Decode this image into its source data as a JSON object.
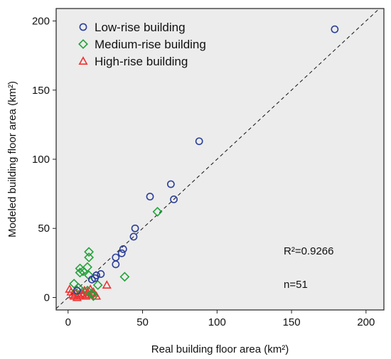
{
  "chart_data": {
    "type": "scatter",
    "xlabel": "Real building floor area (km²)",
    "ylabel": "Modeled building floor area (km²)",
    "xlim": [
      -8,
      212
    ],
    "ylim": [
      -9,
      209
    ],
    "xticks": [
      0,
      50,
      100,
      150,
      200
    ],
    "yticks": [
      0,
      50,
      100,
      150,
      200
    ],
    "grid": false,
    "legend_position": "top-left",
    "background": "#ececec",
    "reference_line": {
      "type": "identity",
      "style": "dashed"
    },
    "annotations": [
      "R²=0.9266",
      "n=51"
    ],
    "series": [
      {
        "name": "Low-rise building",
        "marker": "circle",
        "color": "#2b3f99",
        "points": [
          {
            "x": 179,
            "y": 194
          },
          {
            "x": 88,
            "y": 113
          },
          {
            "x": 69,
            "y": 82
          },
          {
            "x": 71,
            "y": 71
          },
          {
            "x": 55,
            "y": 73
          },
          {
            "x": 45,
            "y": 50
          },
          {
            "x": 44,
            "y": 44
          },
          {
            "x": 37,
            "y": 35
          },
          {
            "x": 36,
            "y": 32
          },
          {
            "x": 32,
            "y": 29
          },
          {
            "x": 32,
            "y": 24
          },
          {
            "x": 22,
            "y": 17
          },
          {
            "x": 19,
            "y": 16
          },
          {
            "x": 18,
            "y": 14
          },
          {
            "x": 16,
            "y": 13
          },
          {
            "x": 6,
            "y": 5
          }
        ]
      },
      {
        "name": "Medium-rise building",
        "marker": "diamond",
        "color": "#22a33a",
        "points": [
          {
            "x": 60,
            "y": 62
          },
          {
            "x": 14,
            "y": 33
          },
          {
            "x": 14,
            "y": 29
          },
          {
            "x": 13,
            "y": 22
          },
          {
            "x": 8,
            "y": 21
          },
          {
            "x": 8,
            "y": 18
          },
          {
            "x": 10,
            "y": 19
          },
          {
            "x": 14,
            "y": 16
          },
          {
            "x": 38,
            "y": 15
          },
          {
            "x": 20,
            "y": 9
          },
          {
            "x": 4,
            "y": 10
          },
          {
            "x": 7,
            "y": 7
          },
          {
            "x": 6,
            "y": 5
          },
          {
            "x": 13,
            "y": 5
          },
          {
            "x": 16,
            "y": 3
          },
          {
            "x": 17,
            "y": 1
          }
        ]
      },
      {
        "name": "High-rise building",
        "marker": "triangle",
        "color": "#ee3333",
        "points": [
          {
            "x": 1,
            "y": 6
          },
          {
            "x": 2,
            "y": 4
          },
          {
            "x": 3,
            "y": 2
          },
          {
            "x": 4,
            "y": 1
          },
          {
            "x": 5,
            "y": 3
          },
          {
            "x": 6,
            "y": 0
          },
          {
            "x": 7,
            "y": 2
          },
          {
            "x": 8,
            "y": 1
          },
          {
            "x": 9,
            "y": 3
          },
          {
            "x": 10,
            "y": 2
          },
          {
            "x": 11,
            "y": 5
          },
          {
            "x": 12,
            "y": 1
          },
          {
            "x": 13,
            "y": 4
          },
          {
            "x": 14,
            "y": 2
          },
          {
            "x": 15,
            "y": 6
          },
          {
            "x": 16,
            "y": 3
          },
          {
            "x": 17,
            "y": 4
          },
          {
            "x": 19,
            "y": 1
          },
          {
            "x": 26,
            "y": 9
          }
        ]
      }
    ]
  }
}
